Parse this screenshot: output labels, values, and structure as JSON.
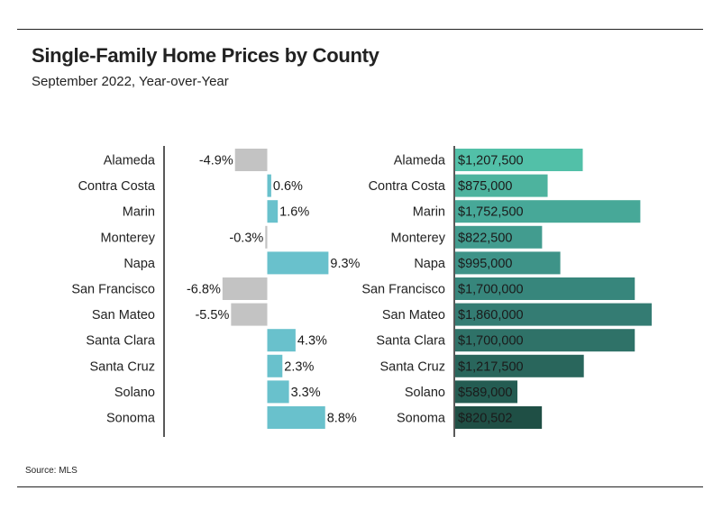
{
  "title": "Single-Family Home Prices by County",
  "subtitle": "September 2022, Year-over-Year",
  "source": "Source:  MLS",
  "colors": {
    "negative_bar": "#c3c3c3",
    "positive_bar": "#69c1cc",
    "price_bars": [
      "#52c0a8",
      "#4db39e",
      "#47a898",
      "#429c8f",
      "#3e9388",
      "#37867c",
      "#347c73",
      "#2f7268",
      "#29665c",
      "#245c52",
      "#1f4f45"
    ]
  },
  "chart_data": [
    {
      "type": "bar",
      "orientation": "horizontal",
      "categories": [
        "Alameda",
        "Contra Costa",
        "Marin",
        "Monterey",
        "Napa",
        "San Francisco",
        "San Mateo",
        "Santa Clara",
        "Santa Cruz",
        "Solano",
        "Sonoma"
      ],
      "values": [
        -4.9,
        0.6,
        1.6,
        -0.3,
        9.3,
        -6.8,
        -5.5,
        4.3,
        2.3,
        3.3,
        8.8
      ],
      "data_labels": [
        "-4.9%",
        "0.6%",
        "1.6%",
        "-0.3%",
        "9.3%",
        "-6.8%",
        "-5.5%",
        "4.3%",
        "2.3%",
        "3.3%",
        "8.8%"
      ],
      "unit": "%"
    },
    {
      "type": "bar",
      "orientation": "horizontal",
      "categories": [
        "Alameda",
        "Contra Costa",
        "Marin",
        "Monterey",
        "Napa",
        "San Francisco",
        "San Mateo",
        "Santa Clara",
        "Santa Cruz",
        "Solano",
        "Sonoma"
      ],
      "values": [
        1207500,
        875000,
        1752500,
        822500,
        995000,
        1700000,
        1860000,
        1700000,
        1217500,
        589000,
        820502
      ],
      "data_labels": [
        "$1,207,500",
        "$875,000",
        "$1,752,500",
        "$822,500",
        "$995,000",
        "$1,700,000",
        "$1,860,000",
        "$1,700,000",
        "$1,217,500",
        "$589,000",
        "$820,502"
      ],
      "unit": "USD"
    }
  ]
}
